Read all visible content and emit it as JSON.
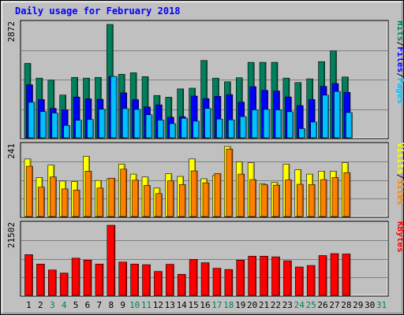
{
  "title": "Daily usage for February 2018",
  "colors": {
    "hits": "#00805c",
    "files": "#0000ff",
    "pages": "#00c0ff",
    "visits": "#ffff00",
    "sites": "#ff8000",
    "kbytes": "#ff0000",
    "weekend_day": "#00805c",
    "weekday": "#000000",
    "background": "#c0c0c0",
    "plot_bg": "#c0c0c0"
  },
  "chart_data": [
    {
      "type": "bar",
      "panel": "hits-files-pages",
      "ymax_label": "2872",
      "ymax": 2872,
      "categories": [
        "1",
        "2",
        "3",
        "4",
        "5",
        "6",
        "7",
        "8",
        "9",
        "10",
        "11",
        "12",
        "13",
        "14",
        "15",
        "16",
        "17",
        "18",
        "19",
        "20",
        "21",
        "22",
        "23",
        "24",
        "25",
        "26",
        "27",
        "28",
        "29",
        "30",
        "31"
      ],
      "series": [
        {
          "name": "Hits",
          "color_key": "hits",
          "values": [
            1885,
            1512,
            1460,
            1084,
            1531,
            1512,
            1531,
            2872,
            1610,
            1647,
            1550,
            1073,
            1029,
            1239,
            1257,
            1959,
            1512,
            1419,
            1522,
            1912,
            1912,
            1912,
            1512,
            1400,
            1494,
            1930,
            2202,
            1540,
            0,
            0,
            0
          ]
        },
        {
          "name": "Files",
          "color_key": "files",
          "values": [
            1344,
            969,
            745,
            708,
            1034,
            988,
            976,
            1555,
            1140,
            967,
            782,
            836,
            522,
            535,
            1059,
            993,
            1052,
            1095,
            904,
            1296,
            1203,
            1186,
            1036,
            817,
            969,
            1303,
            1375,
            1151,
            0,
            0,
            0
          ]
        },
        {
          "name": "Pages",
          "color_key": "pages",
          "values": [
            900,
            666,
            628,
            313,
            444,
            463,
            723,
            1555,
            739,
            718,
            584,
            448,
            359,
            495,
            421,
            744,
            474,
            455,
            537,
            708,
            718,
            707,
            661,
            233,
            400,
            1080,
            1174,
            640,
            0,
            0,
            0
          ]
        }
      ]
    },
    {
      "type": "bar",
      "panel": "visits-sites",
      "ymax_label": "241",
      "ymax": 241,
      "categories": [
        "1",
        "2",
        "3",
        "4",
        "5",
        "6",
        "7",
        "8",
        "9",
        "10",
        "11",
        "12",
        "13",
        "14",
        "15",
        "16",
        "17",
        "18",
        "19",
        "20",
        "21",
        "22",
        "23",
        "24",
        "25",
        "26",
        "27",
        "28",
        "29",
        "30",
        "31"
      ],
      "series": [
        {
          "name": "Visits",
          "color_key": "visits",
          "values": [
            198,
            134,
            177,
            122,
            120,
            207,
            124,
            130,
            180,
            146,
            136,
            98,
            147,
            138,
            198,
            130,
            141,
            241,
            188,
            185,
            112,
            117,
            180,
            161,
            146,
            156,
            156,
            185,
            0,
            0,
            0
          ]
        },
        {
          "name": "Sites",
          "color_key": "sites",
          "values": [
            173,
            101,
            136,
            95,
            91,
            156,
            98,
            132,
            163,
            125,
            107,
            79,
            123,
            110,
            157,
            116,
            148,
            232,
            146,
            127,
            109,
            108,
            126,
            111,
            110,
            127,
            134,
            151,
            0,
            0,
            0
          ]
        }
      ]
    },
    {
      "type": "bar",
      "panel": "kbytes",
      "ymax_label": "21502",
      "ymax": 21502,
      "categories": [
        "1",
        "2",
        "3",
        "4",
        "5",
        "6",
        "7",
        "8",
        "9",
        "10",
        "11",
        "12",
        "13",
        "14",
        "15",
        "16",
        "17",
        "18",
        "19",
        "20",
        "21",
        "22",
        "23",
        "24",
        "25",
        "26",
        "27",
        "28",
        "29",
        "30",
        "31"
      ],
      "series": [
        {
          "name": "KBytes",
          "color_key": "kbytes",
          "values": [
            12480,
            9584,
            7778,
            6820,
            11406,
            10804,
            9604,
            21502,
            10206,
            9604,
            9404,
            7330,
            9524,
            6450,
            11044,
            10006,
            8304,
            7930,
            10810,
            12018,
            12010,
            11810,
            10602,
            8700,
            9164,
            12206,
            12800,
            12692,
            0,
            0,
            0
          ]
        }
      ]
    }
  ],
  "right_labels": {
    "panel1": [
      {
        "text": "Hits",
        "color_key": "hits"
      },
      {
        "text": "/",
        "color_key": "weekday"
      },
      {
        "text": "Files",
        "color_key": "files"
      },
      {
        "text": "/",
        "color_key": "weekday"
      },
      {
        "text": "Pages",
        "color_key": "pages"
      }
    ],
    "panel2": [
      {
        "text": "Visits",
        "color_key": "visits"
      },
      {
        "text": "/",
        "color_key": "weekday"
      },
      {
        "text": "Sites",
        "color_key": "sites"
      }
    ],
    "panel3": [
      {
        "text": "KBytes",
        "color_key": "kbytes"
      }
    ]
  },
  "weekend_days": [
    "3",
    "4",
    "10",
    "11",
    "17",
    "18",
    "24",
    "25",
    "31"
  ]
}
